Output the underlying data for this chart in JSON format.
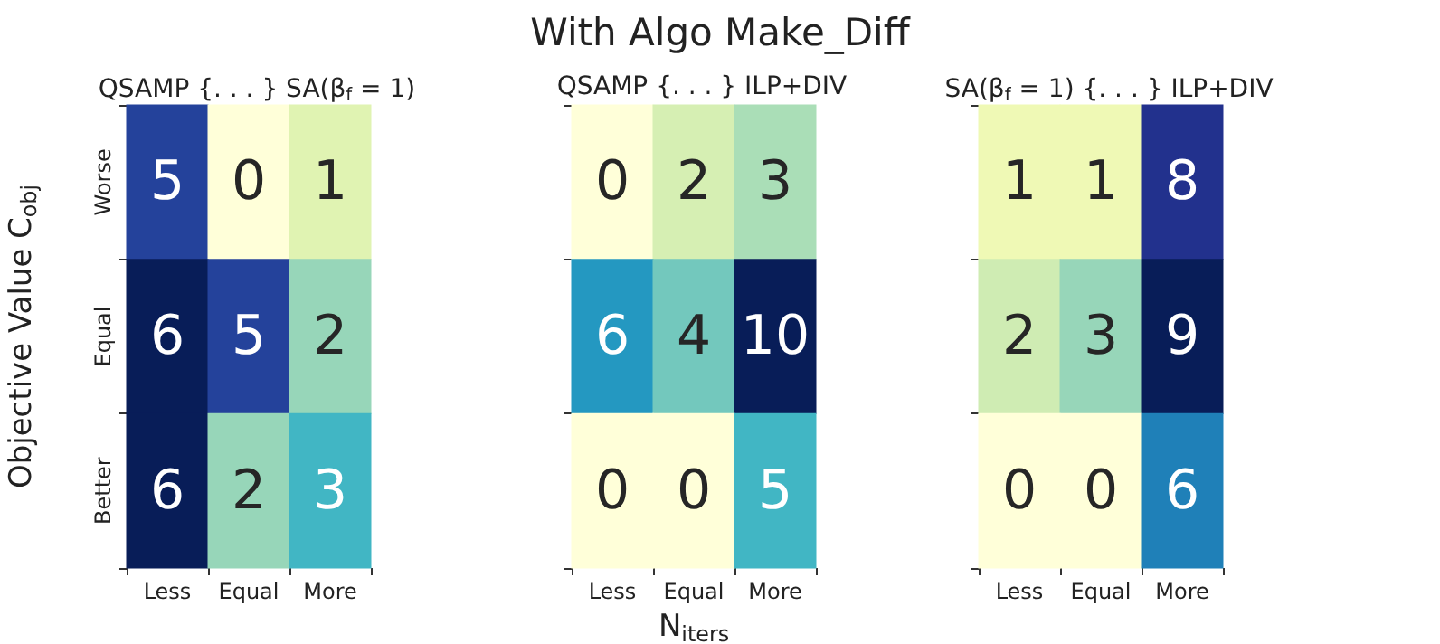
{
  "chart_data": [
    {
      "type": "heatmap",
      "title": "QSAMP {. . . } SA(β$_{f}$ = 1)",
      "annotations": [
        "With Algo Make_Diff"
      ],
      "ylabel": "Objective Value C$_{obj}$",
      "categories": [
        "Less",
        "Equal",
        "More"
      ],
      "y_categories": [
        "Worse",
        "Equal",
        "Better"
      ],
      "cells": [
        [
          5,
          0,
          1
        ],
        [
          6,
          5,
          2
        ],
        [
          6,
          2,
          3
        ]
      ],
      "data_labels": true
    },
    {
      "type": "heatmap",
      "title": "QSAMP {. . . } ILP+DIV",
      "xlabel": "N$_{iters}$",
      "categories": [
        "Less",
        "Equal",
        "More"
      ],
      "y_categories": [
        null,
        null,
        null
      ],
      "cells": [
        [
          0,
          2,
          3
        ],
        [
          6,
          4,
          10
        ],
        [
          0,
          0,
          5
        ]
      ],
      "data_labels": true
    },
    {
      "type": "heatmap",
      "title": "SA(β$_{f}$ = 1) {. . . } ILP+DIV",
      "categories": [
        "Less",
        "Equal",
        "More"
      ],
      "y_categories": [
        null,
        null,
        null
      ],
      "cells": [
        [
          1,
          1,
          8
        ],
        [
          2,
          3,
          9
        ],
        [
          0,
          0,
          6
        ]
      ],
      "data_labels": true
    }
  ]
}
